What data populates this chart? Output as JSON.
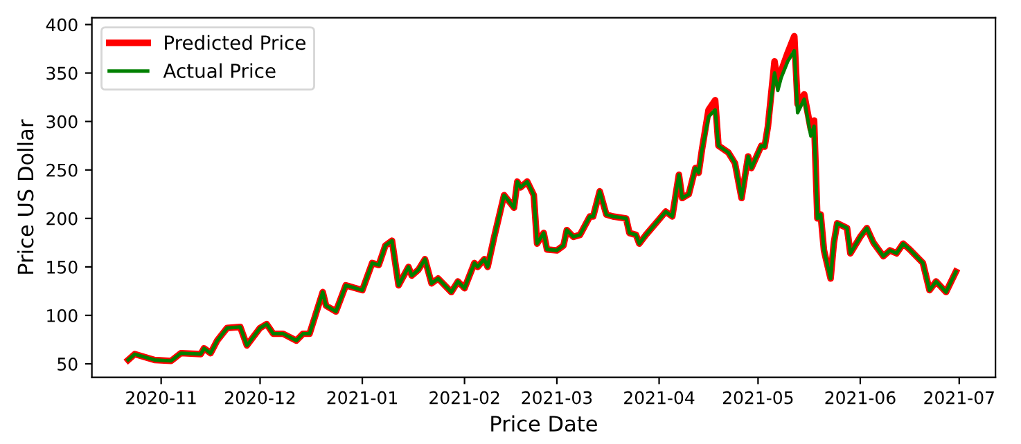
{
  "chart_data": {
    "type": "line",
    "xlabel": "Price Date",
    "ylabel": "Price US Dollar",
    "x": [
      "2020-10-22",
      "2020-10-24",
      "2020-10-30",
      "2020-11-04",
      "2020-11-07",
      "2020-11-13",
      "2020-11-14",
      "2020-11-16",
      "2020-11-18",
      "2020-11-21",
      "2020-11-25",
      "2020-11-27",
      "2020-12-01",
      "2020-12-03",
      "2020-12-05",
      "2020-12-08",
      "2020-12-12",
      "2020-12-14",
      "2020-12-16",
      "2020-12-20",
      "2020-12-21",
      "2020-12-24",
      "2020-12-27",
      "2021-01-01",
      "2021-01-04",
      "2021-01-06",
      "2021-01-08",
      "2021-01-10",
      "2021-01-12",
      "2021-01-15",
      "2021-01-16",
      "2021-01-18",
      "2021-01-20",
      "2021-01-22",
      "2021-01-24",
      "2021-01-28",
      "2021-01-30",
      "2021-02-01",
      "2021-02-04",
      "2021-02-05",
      "2021-02-07",
      "2021-02-08",
      "2021-02-10",
      "2021-02-13",
      "2021-02-16",
      "2021-02-17",
      "2021-02-18",
      "2021-02-20",
      "2021-02-22",
      "2021-02-23",
      "2021-02-25",
      "2021-02-26",
      "2021-03-01",
      "2021-03-03",
      "2021-03-04",
      "2021-03-06",
      "2021-03-08",
      "2021-03-11",
      "2021-03-12",
      "2021-03-14",
      "2021-03-16",
      "2021-03-18",
      "2021-03-22",
      "2021-03-23",
      "2021-03-25",
      "2021-03-26",
      "2021-03-28",
      "2021-03-31",
      "2021-04-03",
      "2021-04-05",
      "2021-04-07",
      "2021-04-08",
      "2021-04-10",
      "2021-04-12",
      "2021-04-13",
      "2021-04-14",
      "2021-04-16",
      "2021-04-18",
      "2021-04-19",
      "2021-04-22",
      "2021-04-24",
      "2021-04-26",
      "2021-04-28",
      "2021-04-29",
      "2021-05-02",
      "2021-05-03",
      "2021-05-04",
      "2021-05-06",
      "2021-05-07",
      "2021-05-08",
      "2021-05-10",
      "2021-05-12",
      "2021-05-13",
      "2021-05-15",
      "2021-05-17",
      "2021-05-18",
      "2021-05-19",
      "2021-05-20",
      "2021-05-21",
      "2021-05-23",
      "2021-05-24",
      "2021-05-25",
      "2021-05-28",
      "2021-05-29",
      "2021-06-01",
      "2021-06-03",
      "2021-06-05",
      "2021-06-08",
      "2021-06-10",
      "2021-06-12",
      "2021-06-14",
      "2021-06-16",
      "2021-06-20",
      "2021-06-22",
      "2021-06-24",
      "2021-06-27",
      "2021-06-30"
    ],
    "series": [
      {
        "name": "Predicted Price",
        "color": "#ff0000",
        "values": [
          54,
          60,
          54,
          53,
          61,
          60,
          66,
          61,
          74,
          87,
          88,
          69,
          87,
          91,
          81,
          81,
          74,
          81,
          81,
          124,
          110,
          104,
          131,
          126,
          154,
          152,
          172,
          177,
          131,
          150,
          141,
          147,
          158,
          133,
          138,
          124,
          135,
          128,
          154,
          150,
          158,
          150,
          181,
          224,
          211,
          238,
          232,
          238,
          224,
          174,
          185,
          168,
          167,
          172,
          188,
          181,
          183,
          202,
          202,
          228,
          204,
          202,
          200,
          185,
          183,
          174,
          183,
          195,
          207,
          202,
          245,
          221,
          225,
          252,
          247,
          271,
          312,
          322,
          275,
          268,
          257,
          221,
          264,
          252,
          275,
          274,
          295,
          362,
          340,
          352,
          371,
          388,
          318,
          328,
          292,
          301,
          200,
          204,
          167,
          138,
          175,
          195,
          190,
          164,
          181,
          190,
          175,
          161,
          167,
          164,
          174,
          168,
          154,
          126,
          135,
          124,
          145
        ]
      },
      {
        "name": "Actual Price",
        "color": "#008000",
        "values": [
          54,
          60,
          54,
          53,
          61,
          60,
          66,
          61,
          74,
          87,
          88,
          69,
          87,
          91,
          81,
          81,
          74,
          81,
          81,
          124,
          110,
          104,
          131,
          126,
          154,
          152,
          172,
          177,
          131,
          150,
          141,
          147,
          158,
          133,
          138,
          124,
          135,
          128,
          154,
          150,
          158,
          150,
          181,
          224,
          211,
          238,
          232,
          238,
          224,
          174,
          185,
          168,
          167,
          172,
          188,
          181,
          183,
          202,
          202,
          228,
          204,
          202,
          200,
          185,
          183,
          174,
          183,
          195,
          207,
          202,
          245,
          221,
          225,
          252,
          247,
          271,
          305,
          312,
          275,
          268,
          257,
          221,
          264,
          252,
          275,
          274,
          295,
          350,
          332,
          345,
          362,
          373,
          309,
          323,
          285,
          295,
          200,
          204,
          167,
          138,
          175,
          195,
          190,
          164,
          181,
          190,
          175,
          161,
          167,
          164,
          174,
          168,
          154,
          126,
          135,
          124,
          145
        ]
      }
    ],
    "xlim": [
      "2020-10-11",
      "2021-07-12"
    ],
    "xticks": [
      {
        "value": "2020-11-01",
        "label": "2020-11"
      },
      {
        "value": "2020-12-01",
        "label": "2020-12"
      },
      {
        "value": "2021-01-01",
        "label": "2021-01"
      },
      {
        "value": "2021-02-01",
        "label": "2021-02"
      },
      {
        "value": "2021-03-01",
        "label": "2021-03"
      },
      {
        "value": "2021-04-01",
        "label": "2021-04"
      },
      {
        "value": "2021-05-01",
        "label": "2021-05"
      },
      {
        "value": "2021-06-01",
        "label": "2021-06"
      },
      {
        "value": "2021-07-01",
        "label": "2021-07"
      }
    ],
    "ylim": [
      36,
      407
    ],
    "yticks": [
      50,
      100,
      150,
      200,
      250,
      300,
      350,
      400
    ],
    "grid": false,
    "legend": "top left",
    "marker": "none",
    "line_style": "solid"
  }
}
